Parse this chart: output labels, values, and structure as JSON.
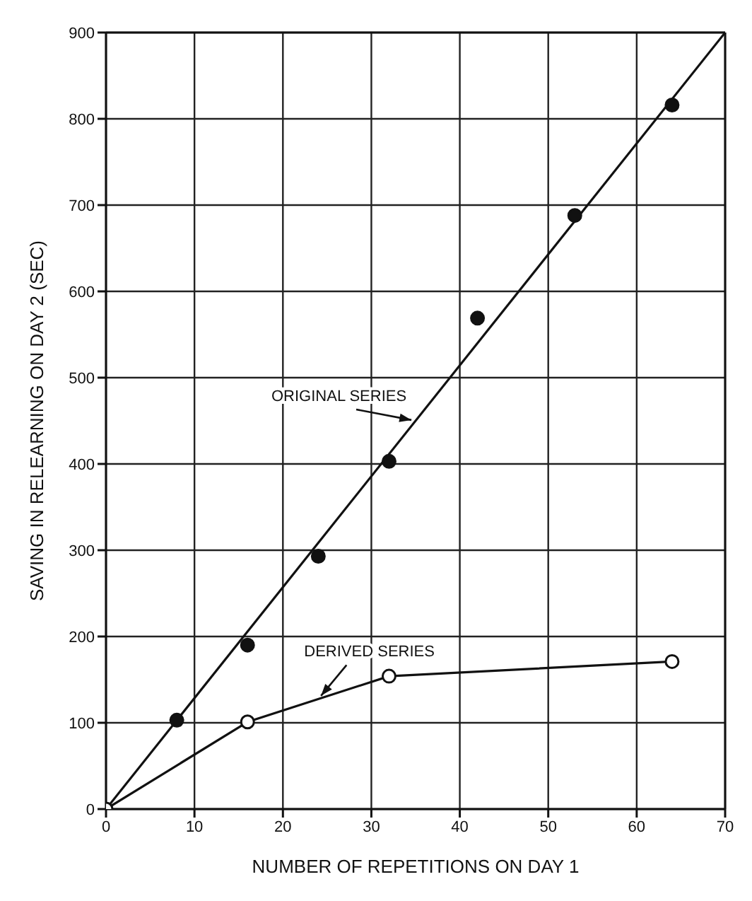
{
  "chart_data": {
    "type": "scatter",
    "xlabel": "NUMBER OF REPETITIONS ON DAY 1",
    "ylabel": "SAVING IN RELEARNING ON DAY 2 (SEC)",
    "xlim": [
      0,
      70
    ],
    "ylim": [
      0,
      900
    ],
    "xticks": [
      0,
      10,
      20,
      30,
      40,
      50,
      60,
      70
    ],
    "yticks": [
      0,
      100,
      200,
      300,
      400,
      500,
      600,
      700,
      800,
      900
    ],
    "grid": true,
    "series": [
      {
        "type": "line",
        "name": "ORIGINAL SERIES",
        "color": "#111111",
        "x": [
          0,
          70
        ],
        "values": [
          0,
          900
        ]
      },
      {
        "color": "#111111",
        "x": [
          8,
          16,
          24,
          32,
          42,
          53,
          64
        ],
        "values": [
          103,
          190,
          293,
          403,
          569,
          688,
          816
        ],
        "marker": "circle"
      },
      {
        "type": "line",
        "name": "DERIVED SERIES",
        "color": "#111111",
        "x": [
          0,
          16,
          32,
          64
        ],
        "values": [
          0,
          101,
          154,
          171
        ],
        "marker": "circle"
      }
    ]
  }
}
